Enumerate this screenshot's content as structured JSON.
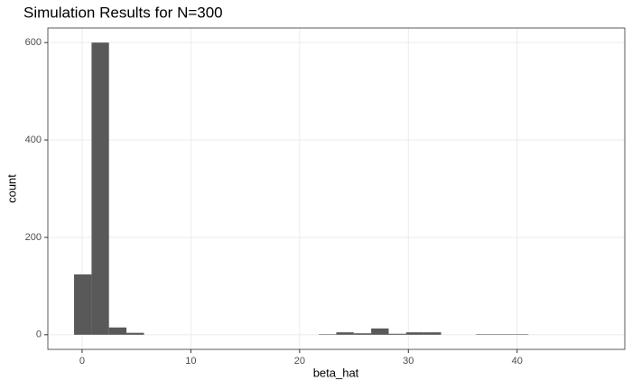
{
  "chart_data": {
    "type": "histogram",
    "title": "Simulation Results for N=300",
    "x_label": "beta_hat",
    "y_label": "count",
    "bins": [
      -0.74,
      0.87,
      2.47,
      4.08,
      5.69,
      7.3,
      8.9,
      10.51,
      12.12,
      13.72,
      15.33,
      16.94,
      18.54,
      20.15,
      21.76,
      23.37,
      24.97,
      26.58,
      28.19,
      29.79,
      31.4,
      33.01,
      34.61,
      36.22,
      37.83,
      39.44,
      41.04,
      42.65,
      44.26,
      45.86,
      47.47
    ],
    "values": [
      124,
      600,
      15,
      4,
      0,
      0,
      0,
      0,
      0,
      0,
      0,
      0,
      0,
      0,
      1,
      5,
      3,
      13,
      2,
      5,
      5,
      0,
      0,
      1,
      1,
      1,
      0,
      0,
      0,
      0
    ],
    "color": "#595959",
    "xlim": [
      -3.15,
      49.9
    ],
    "ylim": [
      -30,
      630
    ],
    "xticks": [
      0,
      10,
      20,
      30,
      40
    ],
    "yticks": [
      0,
      200,
      400,
      600
    ],
    "grid": true
  }
}
